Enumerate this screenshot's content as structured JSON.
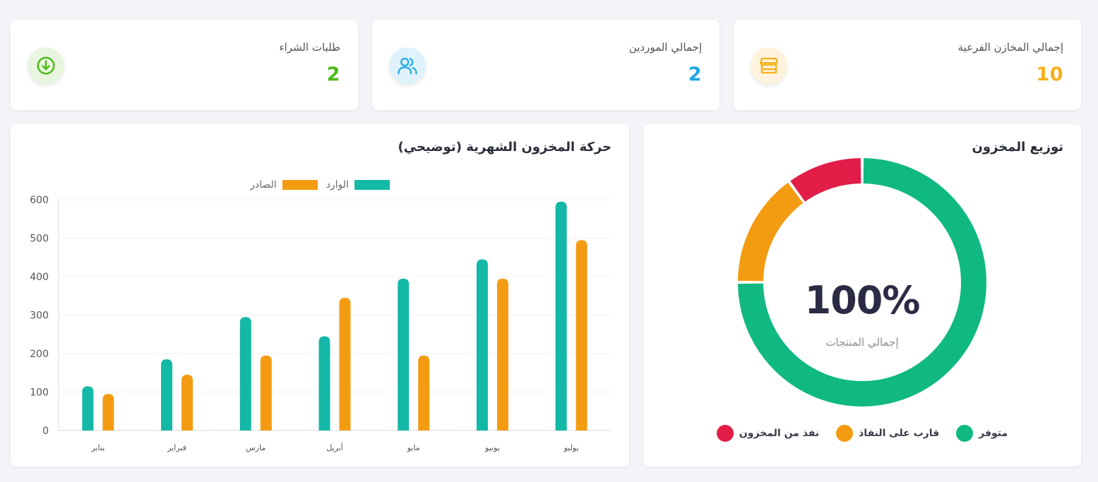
{
  "stats": [
    {
      "label": "إجمالي المخازن الفرعية",
      "value": "10",
      "icon": "store-icon",
      "color": "#f5b01a",
      "bg": "#fff3dd"
    },
    {
      "label": "إجمالي الموردين",
      "value": "2",
      "icon": "users-icon",
      "color": "#1fa8e6",
      "bg": "#e0f3fc"
    },
    {
      "label": "طلبات الشراء",
      "value": "2",
      "icon": "download-circle-icon",
      "color": "#4cbb17",
      "bg": "#e8f6df"
    }
  ],
  "movement": {
    "title": "حركة المخزون الشهرية (توضيحي)"
  },
  "distribution": {
    "title": "توزيع المخزون",
    "center_value": "100%",
    "center_label": "إجمالي المنتجات",
    "legend": [
      {
        "label": "متوفر",
        "color": "#10b981"
      },
      {
        "label": "قارب على النفاذ",
        "color": "#f39c12"
      },
      {
        "label": "نفذ من المخزون",
        "color": "#e11d48"
      }
    ]
  },
  "chart_data": [
    {
      "type": "bar",
      "title": "حركة المخزون الشهرية (توضيحي)",
      "categories": [
        "يناير",
        "فبراير",
        "مارس",
        "أبريل",
        "مايو",
        "يونيو",
        "يوليو"
      ],
      "series": [
        {
          "name": "الوارد",
          "color": "#14b8a6",
          "values": [
            115,
            185,
            295,
            245,
            395,
            445,
            595
          ]
        },
        {
          "name": "الصادر",
          "color": "#f39c12",
          "values": [
            95,
            145,
            195,
            345,
            195,
            395,
            495
          ]
        }
      ],
      "ylim": [
        0,
        600
      ],
      "yticks": [
        0,
        100,
        200,
        300,
        400,
        500,
        600
      ],
      "grid": true,
      "legend_position": "top-center"
    },
    {
      "type": "pie",
      "title": "توزيع المخزون",
      "labels": [
        "متوفر",
        "قارب على النفاذ",
        "نفذ من المخزون"
      ],
      "values": [
        75,
        15,
        10
      ],
      "colors": [
        "#10b981",
        "#f39c12",
        "#e11d48"
      ]
    }
  ]
}
